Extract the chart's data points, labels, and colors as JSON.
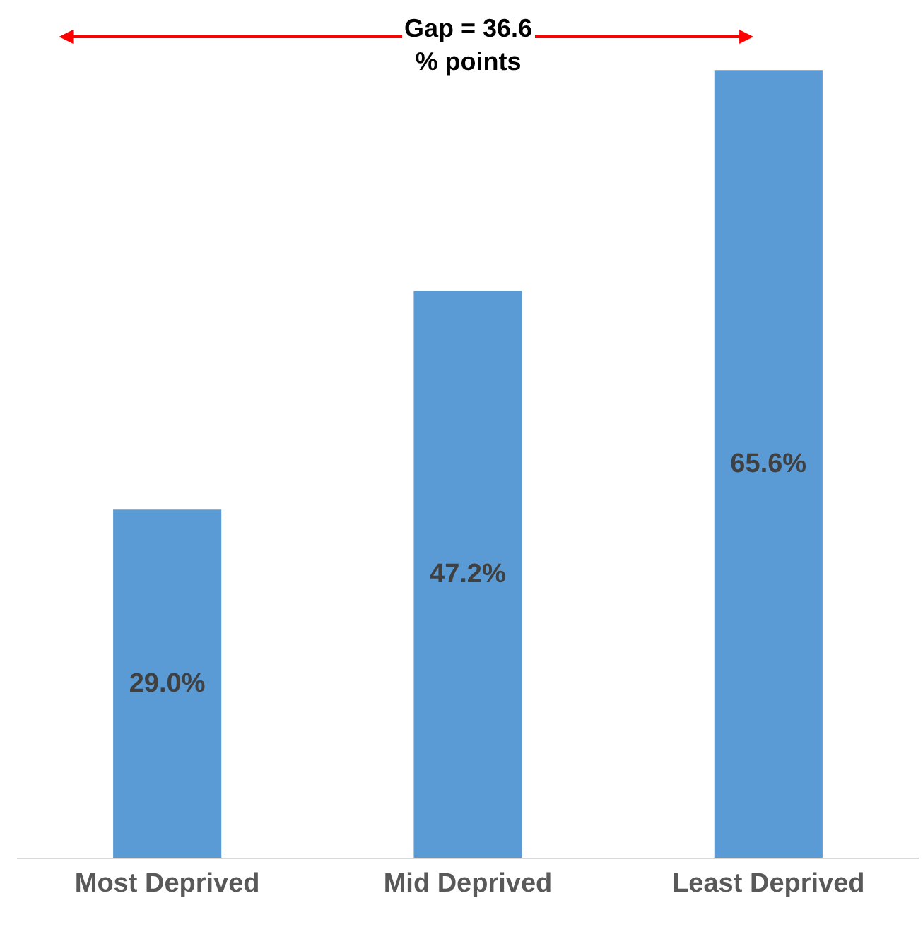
{
  "chart_data": {
    "type": "bar",
    "categories": [
      "Most Deprived",
      "Mid Deprived",
      "Least Deprived"
    ],
    "values": [
      29.0,
      47.2,
      65.6
    ],
    "value_labels": [
      "29.0%",
      "47.2%",
      "65.6%"
    ],
    "color": "#5b9bd5",
    "ylim": [
      0,
      70.5
    ],
    "tick_labels": "x",
    "legend": false,
    "annotations": [
      "Gap = 36.6\n% points"
    ]
  }
}
